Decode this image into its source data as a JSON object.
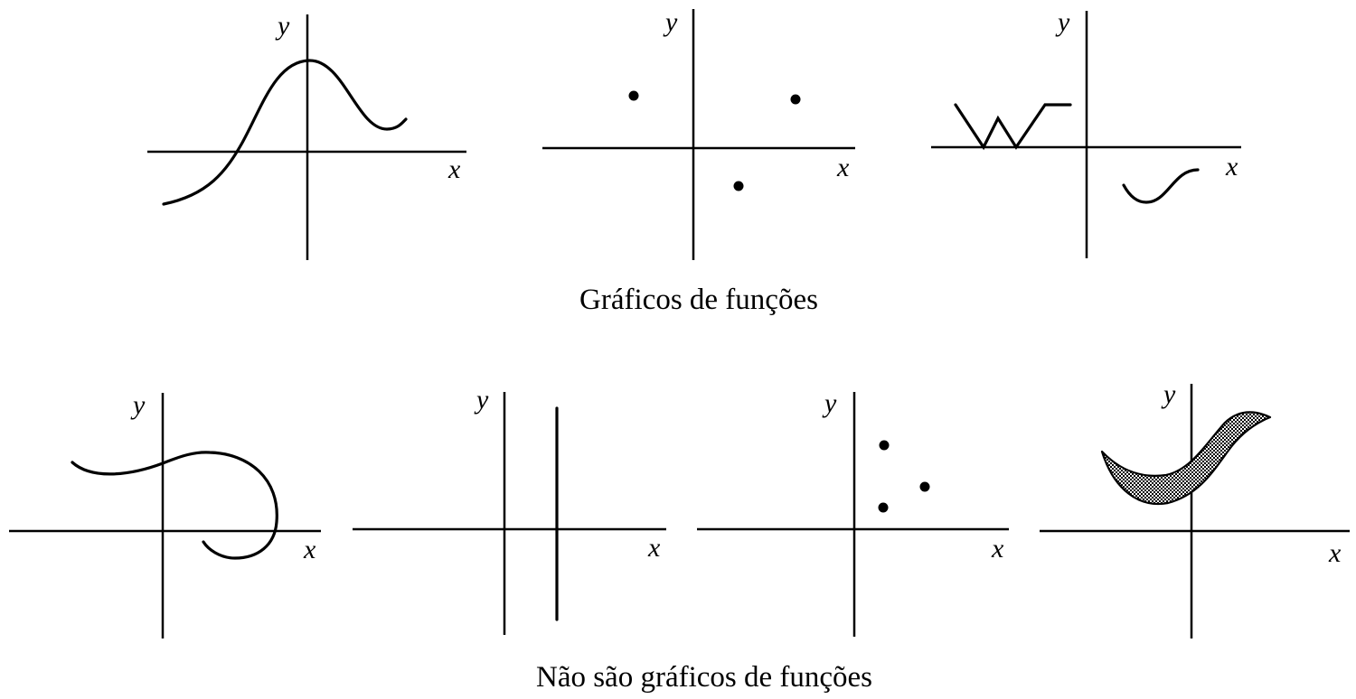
{
  "captions": {
    "functions": "Gráficos de funções",
    "non_functions": "Não são gráficos de funções"
  },
  "axis_labels": {
    "x": "x",
    "y": "y"
  },
  "colors": {
    "ink": "#000000",
    "shade_fill": "#9a9a9a"
  },
  "panels": [
    {
      "group": "functions",
      "kind": "smooth-curve"
    },
    {
      "group": "functions",
      "kind": "scattered-points"
    },
    {
      "group": "functions",
      "kind": "zigzag-and-wave"
    },
    {
      "group": "non_functions",
      "kind": "looping-curve"
    },
    {
      "group": "non_functions",
      "kind": "vertical-line"
    },
    {
      "group": "non_functions",
      "kind": "stacked-points"
    },
    {
      "group": "non_functions",
      "kind": "shaded-region"
    }
  ]
}
